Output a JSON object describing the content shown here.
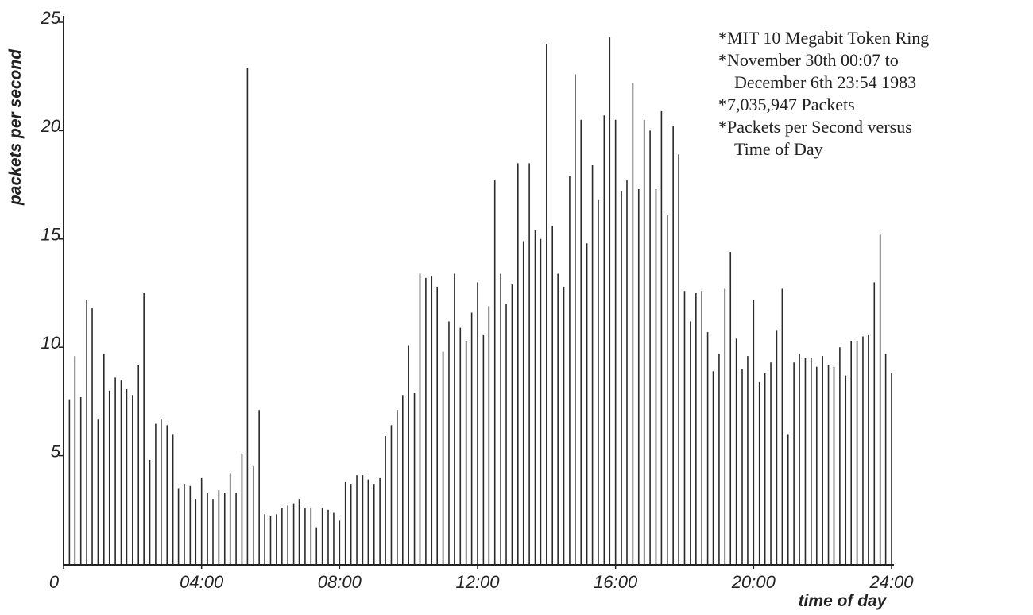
{
  "chart_data": {
    "type": "bar",
    "x_label": "time of day",
    "y_label": "packets per second",
    "annotations": [
      "*MIT 10 Megabit Token Ring",
      "*November 30th 00:07 to",
      "December 6th 23:54 1983",
      "*7,035,947 Packets",
      "*Packets per Second versus",
      "Time of Day"
    ],
    "color": "#2a2a2a",
    "xlim": [
      0,
      24
    ],
    "ylim": [
      0,
      25
    ],
    "xticks": [
      0,
      {
        "value": 4,
        "label": "04:00"
      },
      {
        "value": 8,
        "label": "08:00"
      },
      {
        "value": 12,
        "label": "12:00"
      },
      {
        "value": 16,
        "label": "16:00"
      },
      {
        "value": 20,
        "label": "20:00"
      },
      {
        "value": 24,
        "label": "24:00"
      }
    ],
    "yticks": [
      5,
      10,
      15,
      20,
      25
    ],
    "x": [
      0.17,
      0.33,
      0.5,
      0.67,
      0.83,
      1,
      1.17,
      1.33,
      1.5,
      1.67,
      1.83,
      2,
      2.17,
      2.33,
      2.5,
      2.67,
      2.83,
      3,
      3.17,
      3.33,
      3.5,
      3.67,
      3.83,
      4,
      4.17,
      4.33,
      4.5,
      4.67,
      4.83,
      5,
      5.17,
      5.33,
      5.5,
      5.67,
      5.83,
      6,
      6.17,
      6.33,
      6.5,
      6.67,
      6.83,
      7,
      7.17,
      7.33,
      7.5,
      7.67,
      7.83,
      8,
      8.17,
      8.33,
      8.5,
      8.67,
      8.83,
      9,
      9.17,
      9.33,
      9.5,
      9.67,
      9.83,
      10,
      10.17,
      10.33,
      10.5,
      10.67,
      10.83,
      11,
      11.17,
      11.33,
      11.5,
      11.67,
      11.83,
      12,
      12.17,
      12.33,
      12.5,
      12.67,
      12.83,
      13,
      13.17,
      13.33,
      13.5,
      13.67,
      13.83,
      14,
      14.17,
      14.33,
      14.5,
      14.67,
      14.83,
      15,
      15.17,
      15.33,
      15.5,
      15.67,
      15.83,
      16,
      16.17,
      16.33,
      16.5,
      16.67,
      16.83,
      17,
      17.17,
      17.33,
      17.5,
      17.67,
      17.83,
      18,
      18.17,
      18.33,
      18.5,
      18.67,
      18.83,
      19,
      19.17,
      19.33,
      19.5,
      19.67,
      19.83,
      20,
      20.17,
      20.33,
      20.5,
      20.67,
      20.83,
      21,
      21.17,
      21.33,
      21.5,
      21.67,
      21.83,
      22,
      22.17,
      22.33,
      22.5,
      22.67,
      22.83,
      23,
      23.17,
      23.33,
      23.5,
      23.67,
      23.83,
      24
    ],
    "values": [
      7.6,
      9.6,
      7.7,
      12.2,
      11.8,
      6.7,
      9.7,
      8.0,
      8.6,
      8.5,
      8.1,
      7.8,
      9.2,
      12.5,
      4.8,
      6.5,
      6.7,
      6.4,
      6.0,
      3.5,
      3.7,
      3.6,
      3.0,
      4.0,
      3.3,
      3.0,
      3.4,
      3.3,
      4.2,
      3.3,
      5.1,
      22.9,
      4.5,
      7.1,
      2.3,
      2.2,
      2.3,
      2.6,
      2.7,
      2.8,
      3.0,
      2.6,
      2.6,
      1.7,
      2.6,
      2.5,
      2.4,
      2.0,
      3.8,
      3.7,
      4.1,
      4.1,
      3.9,
      3.7,
      4.0,
      5.9,
      6.4,
      7.1,
      7.8,
      10.1,
      7.9,
      13.4,
      13.2,
      13.3,
      12.8,
      9.8,
      11.2,
      13.4,
      10.9,
      10.3,
      11.6,
      13.0,
      10.6,
      11.9,
      17.7,
      13.4,
      12.0,
      12.9,
      18.5,
      14.9,
      18.5,
      15.4,
      15.0,
      24.0,
      15.6,
      13.4,
      12.8,
      17.9,
      22.6,
      20.5,
      14.8,
      18.4,
      16.8,
      20.7,
      24.3,
      20.5,
      17.2,
      17.7,
      22.2,
      17.3,
      20.5,
      20.0,
      17.3,
      20.9,
      16.1,
      20.2,
      18.9,
      12.6,
      11.2,
      12.5,
      12.6,
      10.7,
      8.9,
      9.7,
      12.7,
      14.4,
      10.4,
      9.0,
      9.6,
      12.2,
      8.4,
      8.8,
      9.3,
      10.8,
      12.7,
      6.0,
      9.3,
      9.7,
      9.5,
      9.5,
      9.1,
      9.6,
      9.2,
      9.1,
      10.0,
      8.7,
      10.3,
      10.3,
      10.5,
      10.6,
      13.0,
      15.2,
      9.7,
      8.8
    ]
  }
}
